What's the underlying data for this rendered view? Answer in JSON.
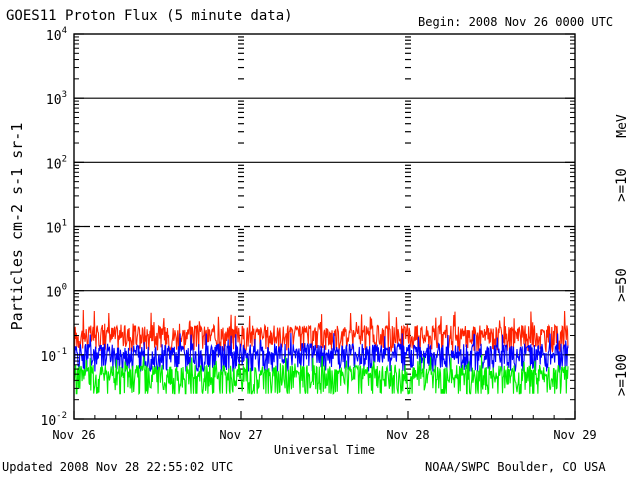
{
  "header": {
    "title": "GOES11 Proton Flux (5 minute data)",
    "begin": "Begin: 2008 Nov 26 0000 UTC"
  },
  "footer": {
    "updated": "Updated 2008 Nov 28 22:55:02 UTC",
    "credit": "NOAA/SWPC Boulder, CO USA"
  },
  "chart_data": {
    "type": "line",
    "title": "GOES11 Proton Flux (5 minute data)",
    "xlabel": "Universal Time",
    "ylabel": "Particles cm-2 s-1 sr-1",
    "yscale": "log",
    "ylim": [
      0.01,
      10000
    ],
    "xlim": [
      0,
      3
    ],
    "x_ticks": [
      {
        "pos": 0,
        "label": "Nov 26"
      },
      {
        "pos": 1,
        "label": "Nov 27"
      },
      {
        "pos": 2,
        "label": "Nov 28"
      },
      {
        "pos": 3,
        "label": "Nov 29"
      }
    ],
    "y_ticks": [
      {
        "value": 0.01,
        "base": "10",
        "exp": "-2"
      },
      {
        "value": 0.1,
        "base": "10",
        "exp": "-1"
      },
      {
        "value": 1,
        "base": "10",
        "exp": "0"
      },
      {
        "value": 10,
        "base": "10",
        "exp": "1"
      },
      {
        "value": 100,
        "base": "10",
        "exp": "2"
      },
      {
        "value": 1000,
        "base": "10",
        "exp": "3"
      },
      {
        "value": 10000,
        "base": "10",
        "exp": "4"
      }
    ],
    "threshold_line": 10,
    "series": [
      {
        "name": ">=10",
        "label": ">=10",
        "color": "#ff2200",
        "baseline": 0.2,
        "noise": 0.09,
        "spikes": 0.5
      },
      {
        "name": ">=50",
        "label": ">=50",
        "color": "#0000ff",
        "baseline": 0.1,
        "noise": 0.05,
        "spikes": 0.22
      },
      {
        "name": ">=100",
        "label": ">=100",
        "color": "#00ee00",
        "baseline": 0.045,
        "noise": 0.025,
        "spikes": 0.1
      }
    ],
    "unit_label": "MeV",
    "grid": true,
    "x_end": 2.96
  }
}
